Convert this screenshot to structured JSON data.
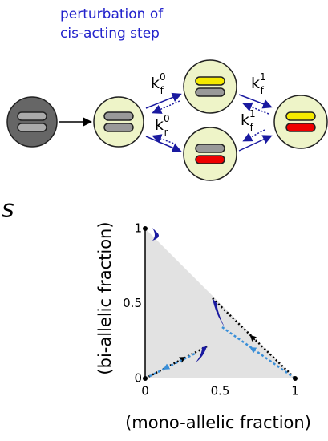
{
  "header": {
    "lines": [
      "perturbation of",
      "cis-acting step"
    ]
  },
  "rates": [
    {
      "base": "k",
      "sub": "f",
      "sup": "0"
    },
    {
      "base": "k",
      "sub": "r",
      "sup": "0"
    },
    {
      "base": "k",
      "sub": "f",
      "sup": "1"
    },
    {
      "base": "k",
      "sub": "f",
      "sup": "1"
    }
  ],
  "panel_letter": "s",
  "plot": {
    "y_label": "(bi-allelic fraction)",
    "x_label": "(mono-allelic fraction)",
    "xticks": [
      0,
      0.5,
      1
    ],
    "yticks": [
      0,
      0.5,
      1
    ]
  }
}
